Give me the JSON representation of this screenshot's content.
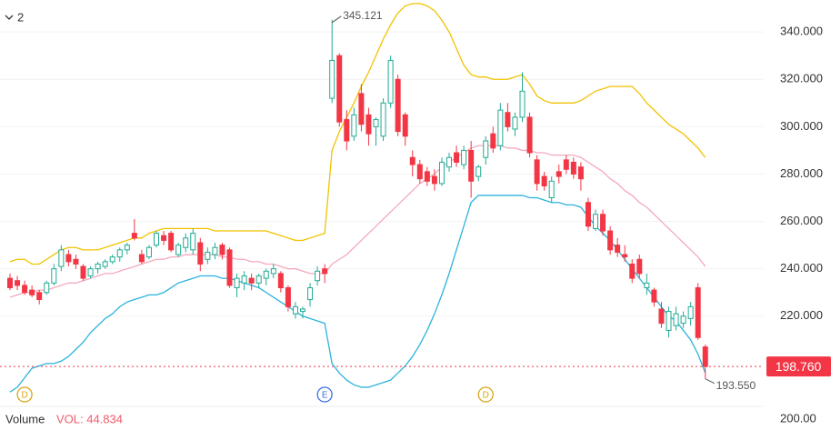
{
  "chart_data": {
    "type": "candlestick",
    "interval_label": "2",
    "ylim": [
      182.3,
      353.5
    ],
    "yticks": [
      {
        "value": 340,
        "label": "340.000"
      },
      {
        "value": 320,
        "label": "320.000"
      },
      {
        "value": 300,
        "label": "300.000"
      },
      {
        "value": 280,
        "label": "280.000"
      },
      {
        "value": 260,
        "label": "260.000"
      },
      {
        "value": 240,
        "label": "240.000"
      },
      {
        "value": 220,
        "label": "220.000"
      }
    ],
    "grid": true,
    "up_color": "#22ab94",
    "down_color": "#f23645",
    "open": [
      236,
      235,
      233,
      231,
      230,
      230,
      234,
      241,
      246,
      244,
      241,
      237,
      240,
      241,
      243,
      245,
      248,
      255,
      246,
      245,
      250,
      254,
      255,
      246,
      249,
      248,
      251,
      244,
      246,
      250,
      248,
      232,
      234,
      236,
      234,
      236,
      238,
      238,
      232,
      221,
      222,
      227,
      235,
      240,
      312,
      330,
      303,
      296,
      314,
      305,
      300,
      296,
      310,
      320,
      305,
      287,
      284,
      281,
      279,
      276,
      283,
      289,
      284,
      290,
      279,
      287,
      297,
      292,
      306,
      299,
      304,
      304,
      286,
      279,
      270,
      281,
      286,
      285,
      283,
      268,
      257,
      263,
      256,
      250,
      246,
      242,
      244,
      232,
      231,
      223,
      214,
      216,
      217,
      219,
      232,
      207
    ],
    "high": [
      238,
      237,
      235,
      233,
      231,
      235,
      242,
      250,
      248,
      246,
      242,
      241,
      243,
      244,
      246,
      249,
      251,
      261,
      248,
      250,
      256,
      256,
      256,
      251,
      255,
      257,
      253,
      249,
      251,
      251,
      249,
      238,
      239,
      238,
      238,
      240,
      242,
      239,
      233,
      226,
      224,
      234,
      241,
      242,
      345.121,
      331,
      307,
      308,
      318,
      308,
      304,
      312,
      330,
      322,
      306,
      290,
      286,
      283,
      282,
      287,
      289,
      292,
      292,
      294,
      284,
      296,
      300,
      310,
      310,
      306,
      323,
      306,
      288,
      281,
      279,
      284,
      288,
      287,
      285,
      270,
      265,
      265,
      258,
      253,
      250,
      244,
      246,
      238,
      232,
      226,
      224,
      224,
      222,
      226,
      234,
      208
    ],
    "low": [
      231,
      231,
      229,
      228,
      225,
      229,
      233,
      239,
      241,
      240,
      235,
      236,
      238,
      240,
      242,
      243,
      246,
      252,
      242,
      244,
      249,
      250,
      247,
      245,
      247,
      246,
      239,
      242,
      244,
      244,
      232,
      228,
      231,
      231,
      232,
      233,
      236,
      230,
      222,
      219,
      219,
      224,
      233,
      234,
      310,
      300,
      290,
      294,
      298,
      292,
      292,
      294,
      308,
      296,
      292,
      279,
      276,
      275,
      273,
      275,
      281,
      283,
      282,
      270,
      277,
      284,
      289,
      290,
      298,
      296,
      302,
      287,
      273,
      273,
      268,
      276,
      280,
      278,
      273,
      256,
      256,
      254,
      246,
      245,
      243,
      234,
      236,
      229,
      224,
      215,
      211,
      214,
      215,
      216,
      210,
      193.55
    ],
    "close": [
      232,
      233,
      230,
      229,
      227,
      234,
      240,
      248,
      243,
      242,
      236,
      240,
      242,
      243,
      245,
      248,
      250,
      253,
      243,
      249,
      255,
      252,
      248,
      250,
      253,
      255,
      242,
      247,
      249,
      246,
      233,
      236,
      237,
      234,
      237,
      239,
      240,
      232,
      224,
      224,
      223,
      232,
      239,
      238,
      328,
      302,
      294,
      305,
      301,
      297,
      303,
      310,
      328,
      298,
      296,
      284,
      278,
      277,
      276,
      285,
      287,
      285,
      290,
      277,
      283,
      294,
      291,
      307,
      300,
      304,
      315,
      289,
      276,
      275,
      277,
      279,
      282,
      280,
      278,
      258,
      263,
      256,
      248,
      247,
      245,
      236,
      238,
      234,
      226,
      217,
      222,
      221,
      220,
      224,
      211,
      198.76
    ],
    "series": [
      {
        "name": "upper",
        "color": "#f2c200",
        "values": [
          243,
          244,
          244,
          242,
          242,
          244,
          246,
          248,
          249,
          249,
          248,
          248,
          248,
          249,
          250,
          251,
          252,
          253,
          253,
          255,
          256,
          257,
          257,
          257,
          257,
          257,
          257,
          257,
          256,
          256,
          256,
          256,
          256,
          256,
          256,
          256,
          255,
          254,
          253,
          252,
          252,
          253,
          254,
          255,
          290,
          298,
          304,
          310,
          317,
          323,
          330,
          337,
          343,
          348,
          351,
          352,
          352,
          351,
          349,
          345,
          340,
          333,
          326,
          322,
          321,
          321,
          320,
          320,
          320,
          321,
          322,
          318,
          313,
          311,
          310,
          310,
          310,
          310,
          311,
          313,
          315,
          316,
          317,
          317,
          317,
          317,
          314,
          310,
          307,
          304,
          301,
          299,
          297,
          294,
          291,
          287
        ]
      },
      {
        "name": "middle",
        "color": "#f5a9bc",
        "values": [
          228,
          229,
          230,
          230,
          231,
          231,
          232,
          233,
          234,
          234,
          235,
          236,
          237,
          238,
          238,
          239,
          240,
          241,
          242,
          243,
          244,
          244,
          245,
          245,
          246,
          246,
          246,
          246,
          246,
          245,
          245,
          244,
          244,
          243,
          243,
          242,
          242,
          241,
          240,
          240,
          239,
          238,
          238,
          238,
          242,
          244,
          246,
          249,
          252,
          255,
          258,
          261,
          264,
          267,
          270,
          273,
          276,
          278,
          280,
          283,
          285,
          287,
          289,
          291,
          292,
          292,
          292,
          292,
          291,
          291,
          290,
          290,
          289,
          289,
          288,
          288,
          288,
          288,
          287,
          285,
          283,
          281,
          278,
          276,
          273,
          271,
          268,
          266,
          263,
          260,
          257,
          254,
          251,
          248,
          245,
          241
        ]
      },
      {
        "name": "lower",
        "color": "#2bb3dc",
        "values": [
          188,
          190,
          194,
          198,
          199,
          200,
          200,
          201,
          203,
          206,
          209,
          213,
          216,
          219,
          221,
          224,
          226,
          227,
          228,
          229,
          229,
          230,
          232,
          234,
          235,
          236,
          237,
          237,
          237,
          236,
          236,
          235,
          234,
          233,
          232,
          230,
          228,
          226,
          224,
          222,
          220,
          219,
          218,
          217,
          200,
          196,
          193,
          191,
          190,
          190,
          191,
          192,
          193,
          196,
          199,
          203,
          208,
          214,
          221,
          229,
          238,
          248,
          258,
          268,
          271,
          271,
          271,
          271,
          271,
          271,
          271,
          270,
          270,
          269,
          268,
          268,
          267,
          267,
          266,
          262,
          258,
          255,
          252,
          248,
          244,
          240,
          236,
          232,
          228,
          224,
          220,
          218,
          214,
          210,
          204,
          196
        ]
      }
    ],
    "high_label": 345.121,
    "low_label": {
      "value": 193.55,
      "label": "193.550"
    },
    "last_price": {
      "value": 198.76,
      "label": "198.760"
    },
    "events": [
      {
        "label": "D",
        "at": 2
      },
      {
        "label": "E",
        "at": 43
      },
      {
        "label": "D",
        "at": 65
      }
    ],
    "volume": {
      "title": "Volume",
      "value_label": "VOL: 44.834",
      "axis_label": "200.00"
    }
  }
}
